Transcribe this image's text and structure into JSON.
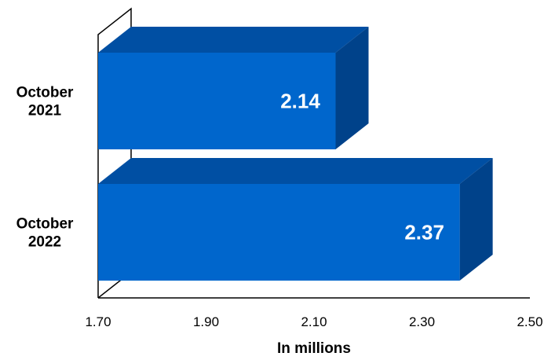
{
  "chart_data": {
    "type": "bar",
    "orientation": "horizontal",
    "style": "3d",
    "categories": [
      "October 2021",
      "October 2022"
    ],
    "category_lines": [
      [
        "October",
        "2021"
      ],
      [
        "October",
        "2022"
      ]
    ],
    "values": [
      2.14,
      2.37
    ],
    "value_labels": [
      "2.14",
      "2.37"
    ],
    "title": "",
    "xlabel": "In millions",
    "ylabel": "",
    "xlim": [
      1.7,
      2.5
    ],
    "xticks": [
      "1.70",
      "1.90",
      "2.10",
      "2.30",
      "2.50"
    ],
    "grid": false,
    "legend": "none",
    "colors": {
      "bar_front": "#0066CC",
      "bar_top": "#004FA3",
      "bar_side": "#00428A",
      "axis": "#000000",
      "data_label": "#ffffff"
    }
  }
}
